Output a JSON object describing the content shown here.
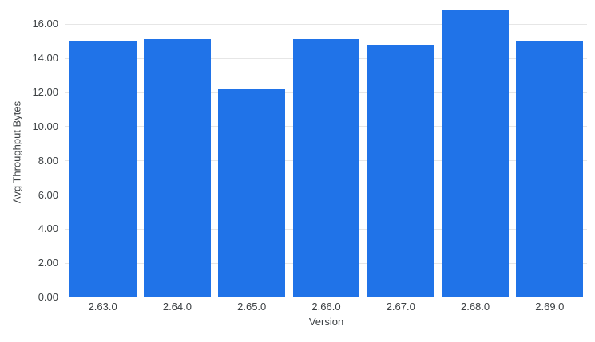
{
  "chart_data": {
    "type": "bar",
    "categories": [
      "2.63.0",
      "2.64.0",
      "2.65.0",
      "2.66.0",
      "2.67.0",
      "2.68.0",
      "2.69.0"
    ],
    "values": [
      15.0,
      15.15,
      12.2,
      15.15,
      14.75,
      16.8,
      15.0
    ],
    "title": "",
    "xlabel": "Version",
    "ylabel": "Avg Throughput Bytes",
    "ylim": [
      0,
      17
    ],
    "yticks": [
      0,
      2,
      4,
      6,
      8,
      10,
      12,
      14,
      16
    ],
    "ytick_labels": [
      "0.00",
      "2.00",
      "4.00",
      "6.00",
      "8.00",
      "10.00",
      "12.00",
      "14.00",
      "16.00"
    ],
    "grid": true,
    "legend": "none",
    "bar_color": "#2073e8",
    "gridline_color": "#e6e6e6",
    "baseline_color": "#cccccc",
    "text_color": "#3c4043",
    "background_color": "#ffffff"
  }
}
